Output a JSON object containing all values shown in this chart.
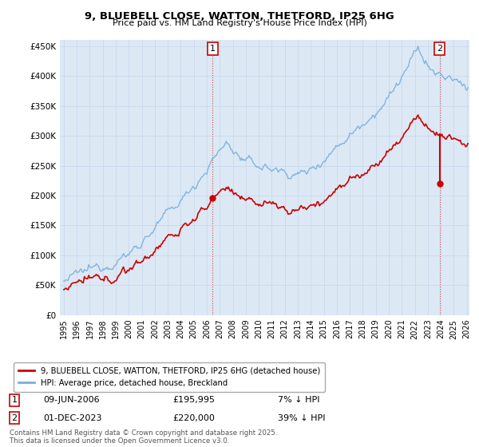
{
  "title": "9, BLUEBELL CLOSE, WATTON, THETFORD, IP25 6HG",
  "subtitle": "Price paid vs. HM Land Registry's House Price Index (HPI)",
  "ylim": [
    0,
    460000
  ],
  "yticks": [
    0,
    50000,
    100000,
    150000,
    200000,
    250000,
    300000,
    350000,
    400000,
    450000
  ],
  "ytick_labels": [
    "£0",
    "£50K",
    "£100K",
    "£150K",
    "£200K",
    "£250K",
    "£300K",
    "£350K",
    "£400K",
    "£450K"
  ],
  "hpi_color": "#7aaddc",
  "price_color": "#cc0000",
  "background_color": "#ffffff",
  "chart_bg_color": "#dce9f5",
  "grid_color": "#c8d8ed",
  "sale1_date_str": "09-JUN-2006",
  "sale1_price_str": "£195,995",
  "sale1_hpi_str": "7% ↓ HPI",
  "sale1_year": 2006.458,
  "sale1_price": 195995,
  "sale2_date_str": "01-DEC-2023",
  "sale2_price_str": "£220,000",
  "sale2_hpi_str": "39% ↓ HPI",
  "sale2_year": 2023.917,
  "sale2_price": 220000,
  "legend_line1": "9, BLUEBELL CLOSE, WATTON, THETFORD, IP25 6HG (detached house)",
  "legend_line2": "HPI: Average price, detached house, Breckland",
  "footer": "Contains HM Land Registry data © Crown copyright and database right 2025.\nThis data is licensed under the Open Government Licence v3.0.",
  "xlim_left": 1994.7,
  "xlim_right": 2026.2
}
